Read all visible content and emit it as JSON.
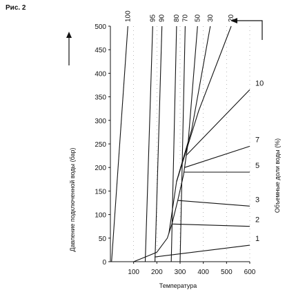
{
  "figure_label": "Рис. 2",
  "chart_data": {
    "type": "line",
    "xlabel": "Температура",
    "ylabel": "Давление подключенной воды (бар)",
    "right_label": "Объемные доли воды (%)",
    "xlim": [
      0,
      600
    ],
    "ylim": [
      0,
      500
    ],
    "x_ticks": [
      100,
      200,
      300,
      400,
      500,
      600
    ],
    "y_ticks": [
      0,
      50,
      100,
      150,
      200,
      250,
      300,
      350,
      400,
      450,
      500
    ],
    "grid": "dotted-vertical",
    "lines": [
      {
        "label": "100",
        "points": [
          [
            5,
            0
          ],
          [
            75,
            500
          ]
        ]
      },
      {
        "label": "95",
        "points": [
          [
            150,
            0
          ],
          [
            182,
            500
          ]
        ]
      },
      {
        "label": "90",
        "points": [
          [
            192,
            0
          ],
          [
            222,
            500
          ]
        ]
      },
      {
        "label": "80",
        "points": [
          [
            262,
            0
          ],
          [
            285,
            500
          ]
        ]
      },
      {
        "label": "70",
        "points": [
          [
            300,
            0
          ],
          [
            322,
            500
          ]
        ]
      },
      {
        "label": "50",
        "points": [
          [
            252,
            60
          ],
          [
            285,
            170
          ],
          [
            335,
            255
          ],
          [
            375,
            500
          ]
        ]
      },
      {
        "label": "30",
        "points": [
          [
            285,
            170
          ],
          [
            350,
            280
          ],
          [
            430,
            500
          ]
        ]
      },
      {
        "label": "20",
        "points": [
          [
            285,
            170
          ],
          [
            380,
            320
          ],
          [
            520,
            500
          ]
        ]
      },
      {
        "label": "10",
        "points": [
          [
            325,
            225
          ],
          [
            600,
            365
          ]
        ]
      },
      {
        "label": "7",
        "points": [
          [
            320,
            200
          ],
          [
            600,
            245
          ]
        ]
      },
      {
        "label": "5",
        "points": [
          [
            315,
            190
          ],
          [
            600,
            190
          ]
        ]
      },
      {
        "label": "3",
        "points": [
          [
            290,
            130
          ],
          [
            600,
            118
          ]
        ]
      },
      {
        "label": "2",
        "points": [
          [
            265,
            80
          ],
          [
            600,
            75
          ]
        ]
      },
      {
        "label": "1",
        "points": [
          [
            190,
            10
          ],
          [
            600,
            35
          ]
        ]
      },
      {
        "label": "",
        "points": [
          [
            100,
            0
          ],
          [
            150,
            10
          ],
          [
            200,
            20
          ],
          [
            245,
            50
          ],
          [
            265,
            80
          ],
          [
            290,
            130
          ],
          [
            315,
            185
          ],
          [
            335,
            255
          ]
        ]
      }
    ]
  }
}
